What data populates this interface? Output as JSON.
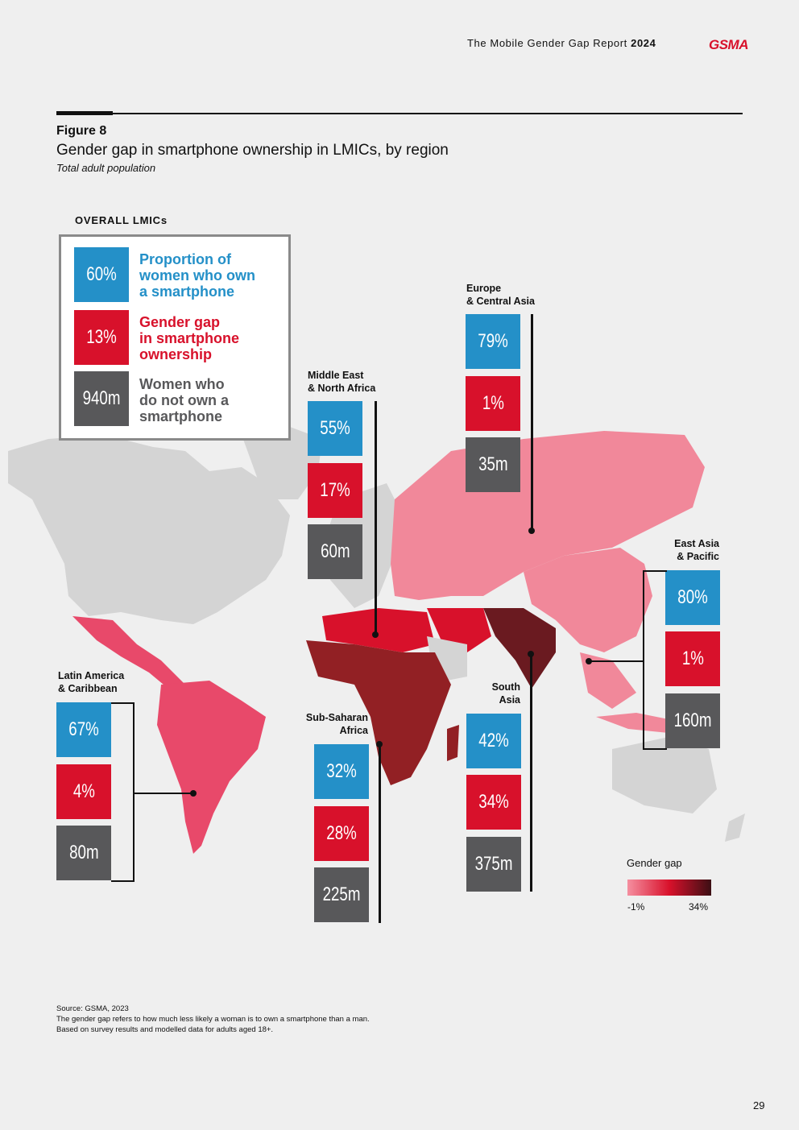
{
  "header": {
    "report_title": "The Mobile Gender Gap Report",
    "report_year": "2024",
    "logo_text": "GSMA"
  },
  "figure": {
    "label": "Figure 8",
    "title": "Gender gap in smartphone ownership in LMICs, by region",
    "subtitle": "Total adult population"
  },
  "overall": {
    "heading": "OVERALL LMICs",
    "items": [
      {
        "value": "60%",
        "label_line1": "Proportion of",
        "label_line2": "women who own",
        "label_line3": "a smartphone",
        "color": "#2490c8"
      },
      {
        "value": "13%",
        "label_line1": "Gender gap",
        "label_line2": "in smartphone",
        "label_line3": "ownership",
        "color": "#d8112b"
      },
      {
        "value": "940m",
        "label_line1": "Women who",
        "label_line2": "do not own a",
        "label_line3": "smartphone",
        "color": "#58585a"
      }
    ]
  },
  "regions": [
    {
      "name_line1": "Latin America",
      "name_line2": "& Caribbean",
      "ownership": "67%",
      "gap": "4%",
      "not_own": "80m",
      "gap_value": 4
    },
    {
      "name_line1": "Middle East",
      "name_line2": "& North Africa",
      "ownership": "55%",
      "gap": "17%",
      "not_own": "60m",
      "gap_value": 17
    },
    {
      "name_line1": "Europe",
      "name_line2": "& Central Asia",
      "ownership": "79%",
      "gap": "1%",
      "not_own": "35m",
      "gap_value": 1
    },
    {
      "name_line1": "Sub-Saharan",
      "name_line2": "Africa",
      "ownership": "32%",
      "gap": "28%",
      "not_own": "225m",
      "gap_value": 28
    },
    {
      "name_line1": "South",
      "name_line2": "Asia",
      "ownership": "42%",
      "gap": "34%",
      "not_own": "375m",
      "gap_value": 34
    },
    {
      "name_line1": "East Asia",
      "name_line2": "& Pacific",
      "ownership": "80%",
      "gap": "1%",
      "not_own": "160m",
      "gap_value": 1
    }
  ],
  "legend": {
    "title": "Gender gap",
    "min_label": "-1%",
    "max_label": "34%",
    "min_color": "#f58fa0",
    "mid_color": "#d8112b",
    "max_color": "#3c0f14"
  },
  "notes": {
    "source": "Source: GSMA, 2023",
    "line1": "The gender gap refers to how much less likely a woman is to own a smartphone than a man.",
    "line2": "Based on survey results and modelled data for adults aged 18+."
  },
  "page_number": "29",
  "colors": {
    "blue": "#2490c8",
    "red": "#d8112b",
    "grey": "#58585a",
    "land_other": "#d4d4d4",
    "background": "#efefef"
  }
}
